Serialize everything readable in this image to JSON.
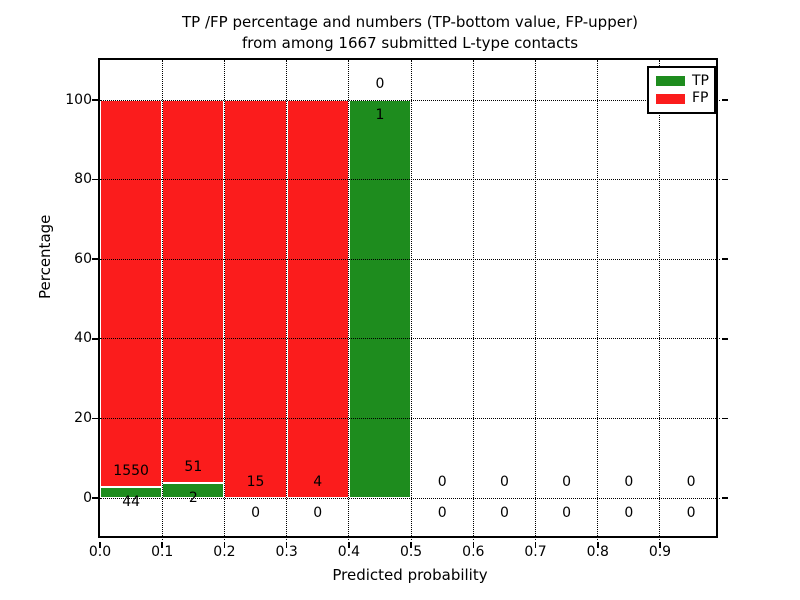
{
  "figure": {
    "title_line1": "TP /FP percentage and numbers (TP-bottom value, FP-upper)",
    "title_line2": "from among 1667 submitted L-type contacts"
  },
  "axes": {
    "xlabel": "Predicted probability",
    "ylabel": "Percentage",
    "xtick_values": [
      0.0,
      0.1,
      0.2,
      0.3,
      0.4,
      0.5,
      0.6,
      0.7,
      0.8,
      0.9
    ],
    "xticklabels": [
      "0.0",
      "0.1",
      "0.2",
      "0.3",
      "0.4",
      "0.5",
      "0.6",
      "0.7",
      "0.8",
      "0.9"
    ],
    "ytick_values": [
      0,
      20,
      40,
      60,
      80,
      100
    ],
    "yticklabels": [
      "0",
      "20",
      "40",
      "60",
      "80",
      "100"
    ]
  },
  "legend": {
    "items": [
      {
        "label": "TP",
        "color": "#1e8c1e"
      },
      {
        "label": "FP",
        "color": "#fb1c1c"
      }
    ]
  },
  "chart_data": {
    "type": "bar",
    "stacked": true,
    "normalization": "each bin scaled to 100 percent of bin total",
    "title": "TP /FP percentage and numbers (TP-bottom value, FP-upper)\nfrom among 1667 submitted L-type contacts",
    "xlabel": "Predicted probability",
    "ylabel": "Percentage",
    "xlim": [
      0,
      1.0
    ],
    "ylim": [
      -10.5,
      110
    ],
    "grid": {
      "style": "dotted",
      "color": "#000000",
      "on_top": true
    },
    "legend_position": "upper right",
    "total_submitted": 1667,
    "bin_width": 0.1,
    "categories": [
      "0.0-0.1",
      "0.1-0.2",
      "0.2-0.3",
      "0.3-0.4",
      "0.4-0.5",
      "0.5-0.6",
      "0.6-0.7",
      "0.7-0.8",
      "0.8-0.9",
      "0.9-1.0"
    ],
    "series": [
      {
        "name": "TP",
        "color": "#1e8c1e",
        "values": [
          44,
          2,
          0,
          0,
          1,
          0,
          0,
          0,
          0,
          0
        ]
      },
      {
        "name": "FP",
        "color": "#fb1c1c",
        "values": [
          1550,
          51,
          15,
          4,
          0,
          0,
          0,
          0,
          0,
          0
        ]
      }
    ],
    "bins": [
      {
        "x_range": [
          0.0,
          0.1
        ],
        "tp_count": 44,
        "fp_count": 1550,
        "tp_pct": 2.76,
        "fp_pct": 97.24,
        "tp_label": "44",
        "fp_label": "1550"
      },
      {
        "x_range": [
          0.1,
          0.2
        ],
        "tp_count": 2,
        "fp_count": 51,
        "tp_pct": 3.77,
        "fp_pct": 96.23,
        "tp_label": "2",
        "fp_label": "51"
      },
      {
        "x_range": [
          0.2,
          0.3
        ],
        "tp_count": 0,
        "fp_count": 15,
        "tp_pct": 0,
        "fp_pct": 100,
        "tp_label": "0",
        "fp_label": "15"
      },
      {
        "x_range": [
          0.3,
          0.4
        ],
        "tp_count": 0,
        "fp_count": 4,
        "tp_pct": 0,
        "fp_pct": 100,
        "tp_label": "0",
        "fp_label": "4"
      },
      {
        "x_range": [
          0.4,
          0.5
        ],
        "tp_count": 1,
        "fp_count": 0,
        "tp_pct": 100,
        "fp_pct": 0,
        "tp_label": "1",
        "fp_label": "0"
      },
      {
        "x_range": [
          0.5,
          0.6
        ],
        "tp_count": 0,
        "fp_count": 0,
        "tp_pct": 0,
        "fp_pct": 0,
        "tp_label": "0",
        "fp_label": "0"
      },
      {
        "x_range": [
          0.6,
          0.7
        ],
        "tp_count": 0,
        "fp_count": 0,
        "tp_pct": 0,
        "fp_pct": 0,
        "tp_label": "0",
        "fp_label": "0"
      },
      {
        "x_range": [
          0.7,
          0.8
        ],
        "tp_count": 0,
        "fp_count": 0,
        "tp_pct": 0,
        "fp_pct": 0,
        "tp_label": "0",
        "fp_label": "0"
      },
      {
        "x_range": [
          0.8,
          0.9
        ],
        "tp_count": 0,
        "fp_count": 0,
        "tp_pct": 0,
        "fp_pct": 0,
        "tp_label": "0",
        "fp_label": "0"
      },
      {
        "x_range": [
          0.9,
          1.0
        ],
        "tp_count": 0,
        "fp_count": 0,
        "tp_pct": 0,
        "fp_pct": 0,
        "tp_label": "0",
        "fp_label": "0"
      }
    ],
    "annotation_rule": "FP count drawn 4 pct-units above top of TP segment; TP count drawn 4 pct-units below top of TP segment"
  }
}
